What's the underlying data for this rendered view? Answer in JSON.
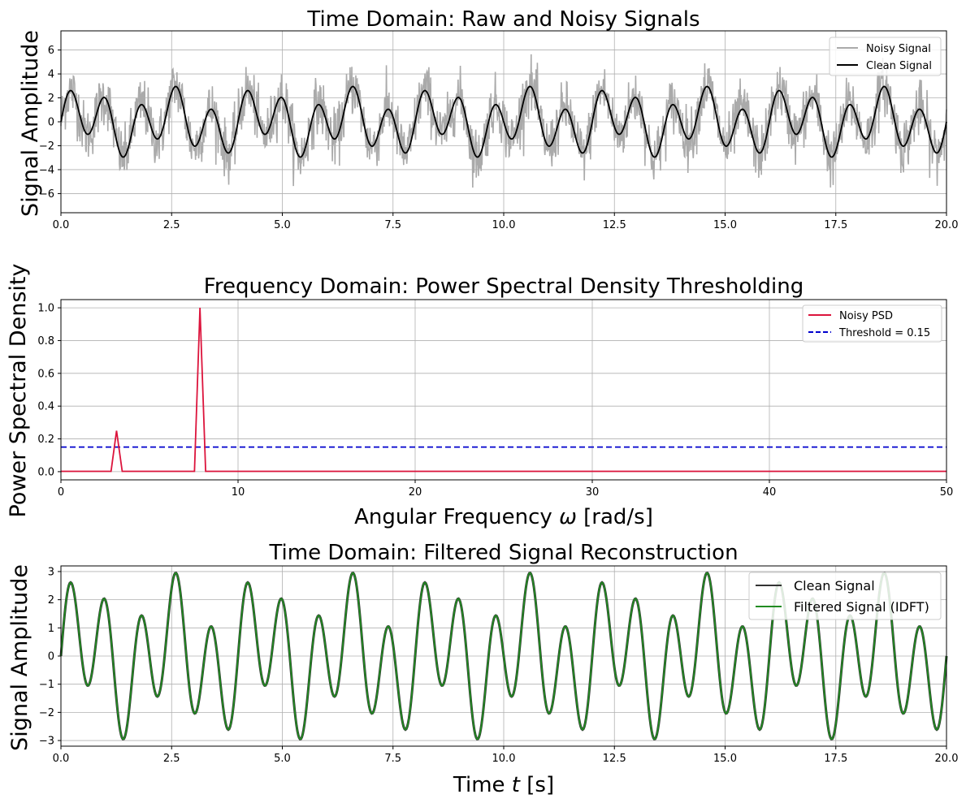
{
  "chart_data": [
    {
      "type": "line",
      "title": "Time Domain: Raw and Noisy Signals",
      "xlabel": "",
      "ylabel": "Signal Amplitude",
      "xlim": [
        0,
        20
      ],
      "ylim": [
        -7.6,
        7.6
      ],
      "x_ticks": [
        "0.0",
        "2.5",
        "5.0",
        "7.5",
        "10.0",
        "12.5",
        "15.0",
        "17.5",
        "20.0"
      ],
      "y_ticks": [
        "−6",
        "−4",
        "−2",
        "0",
        "2",
        "4",
        "6"
      ],
      "grid": true,
      "legend_position": "top-right",
      "series": [
        {
          "name": "Noisy Signal",
          "color": "#aaaaaa",
          "description_of_data": "clean signal plus random noise, amplitude approx -7 to 6.6",
          "function": "clean + noise"
        },
        {
          "name": "Clean Signal",
          "color": "#000000",
          "function": "sin(2*pi*0.5*t) + 2*sin(2*pi*1.25*t)",
          "x_range": [
            0,
            20
          ]
        }
      ]
    },
    {
      "type": "line",
      "title": "Frequency Domain: Power Spectral Density Thresholding",
      "xlabel": "Angular Frequency ω [rad/s]",
      "ylabel": "Power Spectral Density",
      "xlim": [
        0,
        50
      ],
      "ylim": [
        -0.05,
        1.05
      ],
      "x_ticks": [
        "0",
        "10",
        "20",
        "30",
        "40",
        "50"
      ],
      "y_ticks": [
        "0.0",
        "0.2",
        "0.4",
        "0.6",
        "0.8",
        "1.0"
      ],
      "grid": true,
      "legend_position": "top-right",
      "series": [
        {
          "name": "Noisy PSD",
          "color": "#dc143c",
          "x": [
            0,
            2.83,
            3.14,
            3.46,
            7.54,
            7.85,
            8.17,
            50
          ],
          "y": [
            0.002,
            0.002,
            0.25,
            0.002,
            0.002,
            1.0,
            0.002,
            0.002
          ]
        },
        {
          "name": "Threshold = 0.15",
          "color": "#0000cd",
          "x": [
            0,
            50
          ],
          "y": [
            0.15,
            0.15
          ]
        }
      ]
    },
    {
      "type": "line",
      "title": "Time Domain: Filtered Signal Reconstruction",
      "xlabel": "Time t [s]",
      "ylabel": "Signal Amplitude",
      "xlim": [
        0,
        20
      ],
      "ylim": [
        -3.2,
        3.2
      ],
      "x_ticks": [
        "0.0",
        "2.5",
        "5.0",
        "7.5",
        "10.0",
        "12.5",
        "15.0",
        "17.5",
        "20.0"
      ],
      "y_ticks": [
        "−3",
        "−2",
        "−1",
        "0",
        "1",
        "2",
        "3"
      ],
      "grid": true,
      "legend_position": "top-right",
      "series": [
        {
          "name": "Clean Signal",
          "color": "#333333",
          "function": "sin(2*pi*0.5*t) + 2*sin(2*pi*1.25*t)",
          "x_range": [
            0,
            20
          ]
        },
        {
          "name": "Filtered Signal (IDFT)",
          "color": "#228b22",
          "function": "sin(2*pi*0.5*t) + 2*sin(2*pi*1.25*t)",
          "x_range": [
            0,
            20
          ]
        }
      ]
    }
  ],
  "labels": {
    "p1_title": "Time Domain: Raw and Noisy Signals",
    "p1_ylabel": "Signal Amplitude",
    "p1_leg1": "Noisy Signal",
    "p1_leg2": "Clean Signal",
    "p2_title": "Frequency Domain: Power Spectral Density Thresholding",
    "p2_ylabel": "Power Spectral Density",
    "p2_xlabel_main": "Angular Frequency ",
    "p2_xlabel_sym": "ω",
    "p2_xlabel_unit": " [rad/s]",
    "p2_leg1": "Noisy PSD",
    "p2_leg2": "Threshold = 0.15",
    "p3_title": "Time Domain: Filtered Signal Reconstruction",
    "p3_ylabel": "Signal Amplitude",
    "p3_xlabel_main": "Time ",
    "p3_xlabel_sym": "t",
    "p3_xlabel_unit": " [s]",
    "p3_leg1": "Clean Signal",
    "p3_leg2": "Filtered Signal (IDFT)"
  }
}
